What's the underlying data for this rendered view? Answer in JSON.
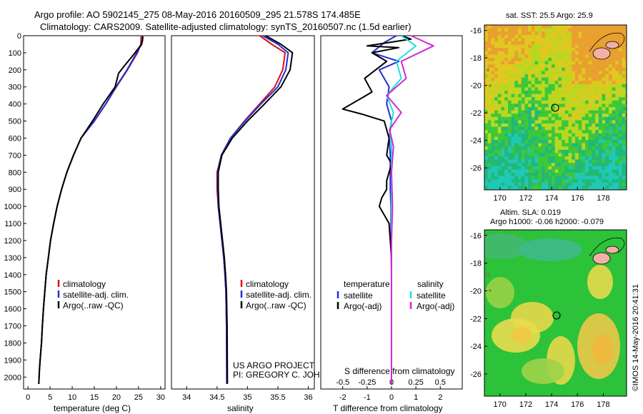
{
  "header": {
    "line1": "Argo profile: AO 5902145_275 08-May-2016 20160509_295 21.578S 174.485E",
    "line2": "Climatology: CARS2009. Satellite-adjusted climatology: synTS_20160507.nc (1.5d earlier)"
  },
  "side_stamp": "©IMOS 14-May-2016 20:41:31",
  "project_note": {
    "line1": "US ARGO PROJECT",
    "line2": "PI: GREGORY C. JOHNSON"
  },
  "colors": {
    "climatology": "#e01010",
    "satellite": "#1f2fd6",
    "argo": "#000000",
    "satellite_diff_S": "#1fe0e0",
    "argo_diff_S": "#d22ad2"
  },
  "chart_data": [
    {
      "id": "temperature",
      "type": "line",
      "xlabel": "temperature (deg C)",
      "ylabel": "",
      "xlim": [
        -1,
        31
      ],
      "ylim": [
        2070,
        0
      ],
      "xticks": [
        0,
        5,
        10,
        15,
        20,
        25,
        30
      ],
      "yticks": [
        0,
        100,
        200,
        300,
        400,
        500,
        600,
        700,
        800,
        900,
        1000,
        1100,
        1200,
        1300,
        1400,
        1500,
        1600,
        1700,
        1800,
        1900,
        2000
      ],
      "legend": {
        "placement": "lower-center",
        "entries": [
          "climatology",
          "satellite-adj. clim.",
          "Argo(..raw -QC)"
        ]
      },
      "series": [
        {
          "name": "climatology",
          "color_key": "climatology",
          "x": [
            25.6,
            25.5,
            24.8,
            22.5,
            20.0,
            17.6,
            15.0,
            12.0,
            10.3,
            8.8,
            7.6,
            6.6,
            5.8,
            5.1,
            4.6,
            4.1,
            3.8,
            3.5,
            3.25,
            3.05,
            2.9,
            2.75,
            2.6,
            2.5,
            2.45
          ],
          "y": [
            0,
            50,
            100,
            200,
            300,
            400,
            500,
            600,
            700,
            800,
            900,
            1000,
            1100,
            1200,
            1300,
            1400,
            1500,
            1600,
            1700,
            1800,
            1850,
            1900,
            1950,
            2000,
            2040
          ]
        },
        {
          "name": "satellite-adj. clim.",
          "color_key": "satellite",
          "x": [
            25.9,
            25.7,
            24.6,
            22.4,
            19.9,
            17.6,
            15.0,
            12.0,
            10.3,
            8.8,
            7.6,
            6.6,
            5.8,
            5.1,
            4.6,
            4.1,
            3.8,
            3.5,
            3.25,
            3.05,
            2.9,
            2.75,
            2.6,
            2.5,
            2.45
          ],
          "y": [
            0,
            50,
            100,
            200,
            300,
            400,
            500,
            600,
            700,
            800,
            900,
            1000,
            1100,
            1200,
            1300,
            1400,
            1500,
            1600,
            1700,
            1800,
            1850,
            1900,
            1950,
            2000,
            2040
          ]
        },
        {
          "name": "Argo(..raw -QC)",
          "color_key": "argo",
          "x": [
            26.0,
            25.9,
            25.7,
            25.1,
            23.6,
            22.0,
            20.5,
            19.7,
            17.0,
            14.6,
            12.0,
            10.3,
            8.8,
            7.6,
            6.6,
            5.8,
            5.1,
            4.6,
            4.1,
            3.8,
            3.5,
            3.25,
            3.05,
            2.9,
            2.75,
            2.6,
            2.5,
            2.45
          ],
          "y": [
            5,
            30,
            50,
            70,
            120,
            170,
            220,
            300,
            400,
            500,
            600,
            700,
            800,
            900,
            1000,
            1100,
            1200,
            1300,
            1400,
            1500,
            1600,
            1700,
            1800,
            1850,
            1900,
            1950,
            2000,
            2040
          ]
        }
      ]
    },
    {
      "id": "salinity",
      "type": "line",
      "xlabel": "salinity",
      "ylabel": "",
      "xlim": [
        33.75,
        36.1
      ],
      "ylim": [
        2070,
        0
      ],
      "xticks": [
        34,
        34.5,
        35,
        35.5,
        36
      ],
      "xticklabels": [
        "34",
        "34.5",
        "35",
        "35.5",
        "36"
      ],
      "legend": {
        "placement": "lower-center",
        "entries": [
          "climatology",
          "satellite-adj. clim.",
          "Argo(..raw -QC)"
        ]
      },
      "series": [
        {
          "name": "climatology",
          "color_key": "climatology",
          "x": [
            35.2,
            35.4,
            35.62,
            35.58,
            35.45,
            35.2,
            34.95,
            34.72,
            34.57,
            34.5,
            34.5,
            34.52,
            34.55,
            34.58,
            34.61,
            34.63,
            34.645,
            34.655,
            34.66
          ],
          "y": [
            0,
            50,
            100,
            200,
            300,
            400,
            500,
            600,
            700,
            800,
            900,
            1000,
            1100,
            1200,
            1300,
            1400,
            1500,
            1700,
            2040
          ]
        },
        {
          "name": "satellite-adj. clim.",
          "color_key": "satellite",
          "x": [
            35.25,
            35.5,
            35.67,
            35.63,
            35.5,
            35.22,
            34.96,
            34.72,
            34.57,
            34.51,
            34.51,
            34.52,
            34.55,
            34.58,
            34.61,
            34.63,
            34.645,
            34.655,
            34.66
          ],
          "y": [
            0,
            50,
            100,
            200,
            300,
            400,
            500,
            600,
            700,
            800,
            900,
            1000,
            1100,
            1200,
            1300,
            1400,
            1500,
            1700,
            2040
          ]
        },
        {
          "name": "Argo(..raw -QC)",
          "color_key": "argo",
          "x": [
            35.3,
            35.55,
            35.74,
            35.7,
            35.55,
            35.28,
            35.0,
            34.75,
            34.58,
            34.52,
            34.52,
            34.53,
            34.56,
            34.59,
            34.62,
            34.64,
            34.655,
            34.665,
            34.67
          ],
          "y": [
            0,
            50,
            100,
            200,
            300,
            400,
            500,
            600,
            700,
            800,
            900,
            1000,
            1100,
            1200,
            1300,
            1400,
            1500,
            1700,
            2040
          ]
        }
      ]
    },
    {
      "id": "differences",
      "type": "line",
      "xlabel": "T difference from climatology",
      "xlabel_top": "S difference from climatology",
      "xlim": [
        -2.9,
        2.9
      ],
      "ylim": [
        2070,
        0
      ],
      "xticks": [
        -2,
        -1,
        0,
        1,
        2
      ],
      "xticks_s": [
        -0.5,
        -0.25,
        0,
        0.25,
        0.5
      ],
      "xticklabels_s": [
        "-0.5",
        "-0.25",
        "0",
        "0.25",
        "0.5"
      ],
      "legend": {
        "placement": "lower-center",
        "temperature_header": "temperature",
        "salinity_header": "salinity",
        "entries": [
          "satellite",
          "Argo(-adj)",
          "satellite",
          "Argo(-adj)"
        ]
      },
      "series": [
        {
          "name": "temperature satellite",
          "quantity": "T",
          "color_key": "satellite",
          "x": [
            0.2,
            -0.3,
            -0.8,
            0.3,
            -0.5,
            -0.1,
            -0.2,
            0.0,
            -0.1,
            -0.05,
            -0.05,
            -0.02,
            -0.02,
            0.0,
            0.0,
            0.0,
            0.0,
            0.0
          ],
          "y": [
            0,
            40,
            100,
            150,
            200,
            300,
            400,
            500,
            600,
            700,
            900,
            1000,
            1200,
            1400,
            1600,
            1800,
            2000,
            2040
          ]
        },
        {
          "name": "temperature Argo(-adj)",
          "quantity": "T",
          "color_key": "argo",
          "x": [
            0.4,
            0.8,
            -1.0,
            0.3,
            -0.8,
            -0.2,
            -1.1,
            -0.8,
            -2.0,
            -1.2,
            -0.3,
            -0.1,
            -0.2,
            0.0,
            -0.1,
            -0.2,
            -0.2,
            -0.4,
            -0.5,
            -0.1,
            0.0,
            0.0,
            0.0,
            0.0
          ],
          "y": [
            0,
            20,
            60,
            70,
            100,
            150,
            250,
            330,
            430,
            460,
            500,
            600,
            700,
            750,
            800,
            850,
            900,
            950,
            1000,
            1100,
            1300,
            1600,
            1900,
            2040
          ]
        },
        {
          "name": "salinity satellite",
          "quantity": "S",
          "color_key": "satellite_diff_S",
          "x": [
            0.1,
            0.25,
            0.05,
            0.1,
            -0.05,
            0.02,
            -0.02,
            0.0,
            0.0,
            0.0,
            0.0,
            0.0
          ],
          "y": [
            0,
            60,
            150,
            250,
            350,
            450,
            550,
            650,
            800,
            1000,
            1500,
            2040
          ]
        },
        {
          "name": "salinity Argo(-adj)",
          "quantity": "S",
          "color_key": "argo_diff_S",
          "x": [
            0.2,
            0.43,
            0.1,
            0.15,
            -0.05,
            0.1,
            -0.02,
            0.02,
            0.0,
            0.01,
            0.0,
            0.0,
            0.0
          ],
          "y": [
            0,
            60,
            150,
            250,
            350,
            450,
            550,
            650,
            800,
            1000,
            1200,
            1600,
            2040
          ]
        }
      ]
    },
    {
      "id": "sst-map",
      "type": "heatmap",
      "title": "sat. SST: 25.5 Argo: 25.9",
      "xlim": [
        168.8,
        179.8
      ],
      "ylim": [
        -27.6,
        -15.6
      ],
      "xticks": [
        170,
        172,
        174,
        176,
        178
      ],
      "yticks": [
        -16,
        -18,
        -20,
        -22,
        -24,
        -26
      ],
      "profile_location": {
        "lon": 174.485,
        "lat": -21.578
      }
    },
    {
      "id": "sla-map",
      "type": "heatmap",
      "title_line1": "Altim. SLA: 0.019",
      "title_line2": "Argo h1000: -0.06 h2000: -0.079",
      "xlim": [
        168.8,
        179.8
      ],
      "ylim": [
        -27.6,
        -15.6
      ],
      "xticks": [
        170,
        172,
        174,
        176,
        178
      ],
      "yticks": [
        -16,
        -18,
        -20,
        -22,
        -24,
        -26
      ],
      "profile_location": {
        "lon": 174.485,
        "lat": -21.578
      }
    }
  ]
}
